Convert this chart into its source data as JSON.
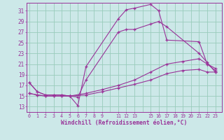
{
  "background_color": "#cce8e8",
  "grid_color": "#99ccbb",
  "line_color": "#993399",
  "xlabel": "Windchill (Refroidissement éolien,°C)",
  "ylabel_ticks": [
    13,
    15,
    17,
    19,
    21,
    23,
    25,
    27,
    29,
    31
  ],
  "xlabel_ticks": [
    0,
    1,
    2,
    3,
    4,
    5,
    6,
    7,
    8,
    9,
    11,
    12,
    13,
    15,
    16,
    17,
    18,
    19,
    20,
    21,
    22,
    23
  ],
  "xlim": [
    -0.3,
    23.8
  ],
  "ylim": [
    12.0,
    32.5
  ],
  "curves": [
    {
      "x": [
        0,
        1,
        2,
        3,
        4,
        5,
        6,
        7,
        11,
        12,
        13,
        15,
        16,
        17,
        21,
        22,
        23
      ],
      "y": [
        17.5,
        15.8,
        15.2,
        15.2,
        15.2,
        15.0,
        13.2,
        20.5,
        29.5,
        31.2,
        31.5,
        32.2,
        31.0,
        25.5,
        25.2,
        21.0,
        20.2
      ]
    },
    {
      "x": [
        0,
        1,
        2,
        3,
        4,
        5,
        6,
        7,
        11,
        12,
        13,
        15,
        16,
        17,
        21,
        22,
        23
      ],
      "y": [
        17.5,
        15.8,
        15.2,
        15.2,
        15.2,
        15.0,
        14.8,
        18.0,
        27.0,
        27.5,
        27.5,
        28.5,
        29.0,
        28.0,
        23.0,
        21.3,
        19.5
      ]
    },
    {
      "x": [
        0,
        1,
        2,
        3,
        4,
        5,
        7,
        9,
        11,
        13,
        15,
        17,
        19,
        21,
        22,
        23
      ],
      "y": [
        15.5,
        15.2,
        15.0,
        15.0,
        15.0,
        15.0,
        15.5,
        16.2,
        17.0,
        18.0,
        19.5,
        21.0,
        21.5,
        22.0,
        21.0,
        19.8
      ]
    },
    {
      "x": [
        0,
        1,
        2,
        3,
        4,
        5,
        7,
        9,
        11,
        13,
        15,
        17,
        19,
        21,
        22,
        23
      ],
      "y": [
        15.5,
        15.2,
        15.0,
        15.0,
        15.0,
        15.0,
        15.2,
        15.8,
        16.5,
        17.2,
        18.0,
        19.2,
        19.8,
        20.0,
        19.5,
        19.5
      ]
    }
  ]
}
